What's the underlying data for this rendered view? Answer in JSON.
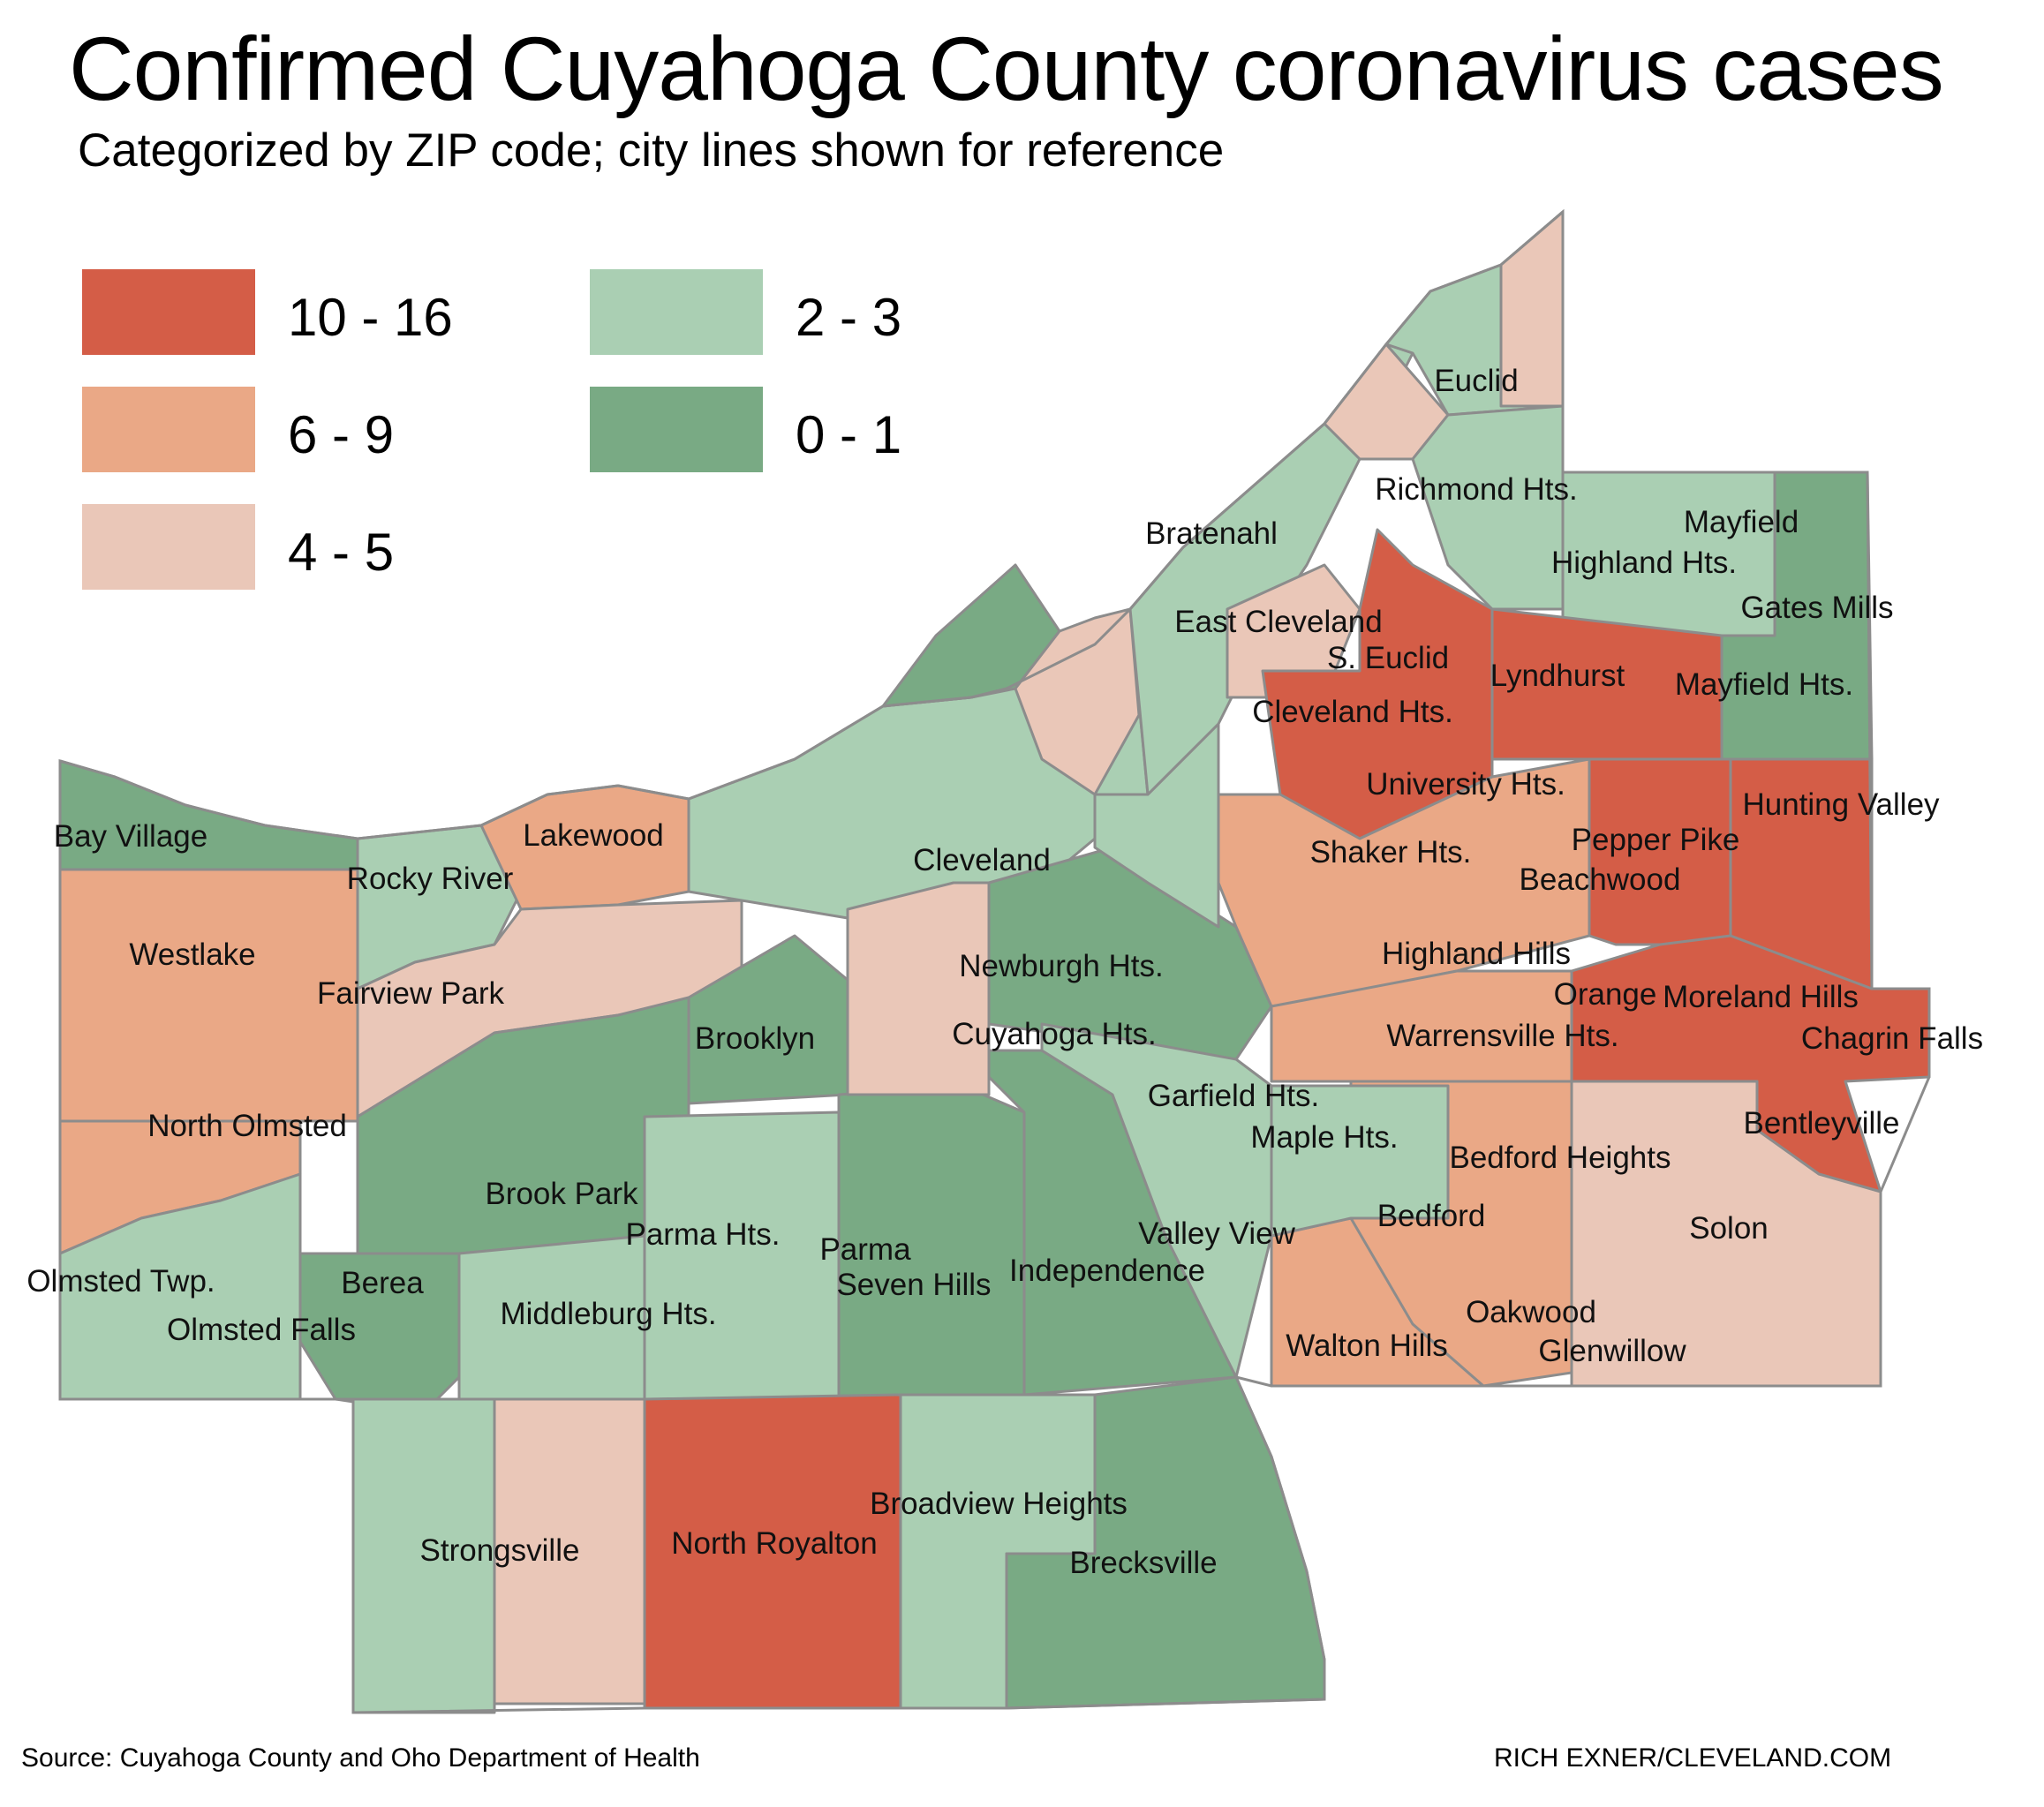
{
  "title": "Confirmed Cuyahoga County coronavirus cases",
  "subtitle": "Categorized by ZIP code; city lines shown for reference",
  "legend": [
    {
      "label": "10 - 16",
      "color": "#d45d47"
    },
    {
      "label": "6 - 9",
      "color": "#eaa886"
    },
    {
      "label": "4 - 5",
      "color": "#eac7b8"
    },
    {
      "label": "2 - 3",
      "color": "#aacfb3"
    },
    {
      "label": "0 - 1",
      "color": "#79aa84"
    }
  ],
  "places": [
    "Euclid",
    "Richmond Hts.",
    "Mayfield",
    "Highland Hts.",
    "Gates Mills",
    "Bratenahl",
    "East Cleveland",
    "S. Euclid",
    "Lyndhurst",
    "Mayfield Hts.",
    "Cleveland Hts.",
    "University Hts.",
    "Hunting Valley",
    "Pepper Pike",
    "Shaker Hts.",
    "Beachwood",
    "Lakewood",
    "Bay Village",
    "Rocky River",
    "Cleveland",
    "Westlake",
    "Newburgh Hts.",
    "Highland Hills",
    "Fairview Park",
    "Orange",
    "Moreland Hills",
    "Brooklyn",
    "Cuyahoga Hts.",
    "Warrensville Hts.",
    "Chagrin Falls",
    "Garfield Hts.",
    "North Olmsted",
    "Maple Hts.",
    "Bentleyville",
    "Bedford Heights",
    "Brook Park",
    "Bedford",
    "Solon",
    "Parma Hts.",
    "Valley View",
    "Parma",
    "Independence",
    "Olmsted Twp.",
    "Berea",
    "Seven Hills",
    "Middleburg Hts.",
    "Oakwood",
    "Olmsted Falls",
    "Walton Hills",
    "Glenwillow",
    "Broadview Heights",
    "North Royalton",
    "Strongsville",
    "Brecksville"
  ],
  "source": "Source: Cuyahoga County and Oho Department of Health",
  "credit": "RICH EXNER/CLEVELAND.COM"
}
